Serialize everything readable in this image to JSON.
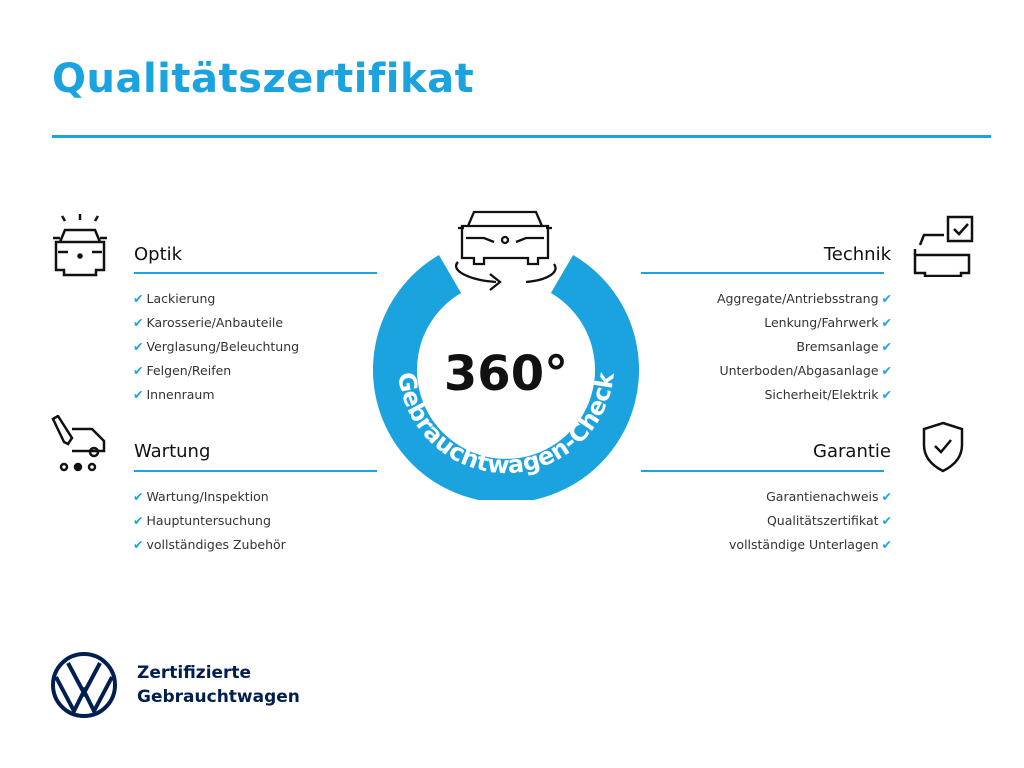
{
  "title": "Qualitätszertifikat",
  "accent": "#1ba3df",
  "center": {
    "degrees": "360°",
    "ring_text": "Gebrauchtwagen-Check",
    "icon": "car-rotate-icon"
  },
  "sections": {
    "optik": {
      "title": "Optik",
      "icon": "car-lights-icon",
      "items": [
        "Lackierung",
        "Karosserie/Anbauteile",
        "Verglasung/Beleuchtung",
        "Felgen/Reifen",
        "Innenraum"
      ]
    },
    "wartung": {
      "title": "Wartung",
      "icon": "service-truck-icon",
      "items": [
        "Wartung/Inspektion",
        "Hauptuntersuchung",
        "vollständiges Zubehör"
      ]
    },
    "technik": {
      "title": "Technik",
      "icon": "car-checklist-icon",
      "items": [
        "Aggregate/Antriebsstrang",
        "Lenkung/Fahrwerk",
        "Bremsanlage",
        "Unterboden/Abgasanlage",
        "Sicherheit/Elektrik"
      ]
    },
    "garantie": {
      "title": "Garantie",
      "icon": "shield-check-icon",
      "items": [
        "Garantienachweis",
        "Qualitätszertifikat",
        "vollständige Unterlagen"
      ]
    }
  },
  "footer": {
    "line1": "Zertifizierte",
    "line2": "Gebrauchtwagen",
    "logo": "vw-logo"
  },
  "check": "✔"
}
